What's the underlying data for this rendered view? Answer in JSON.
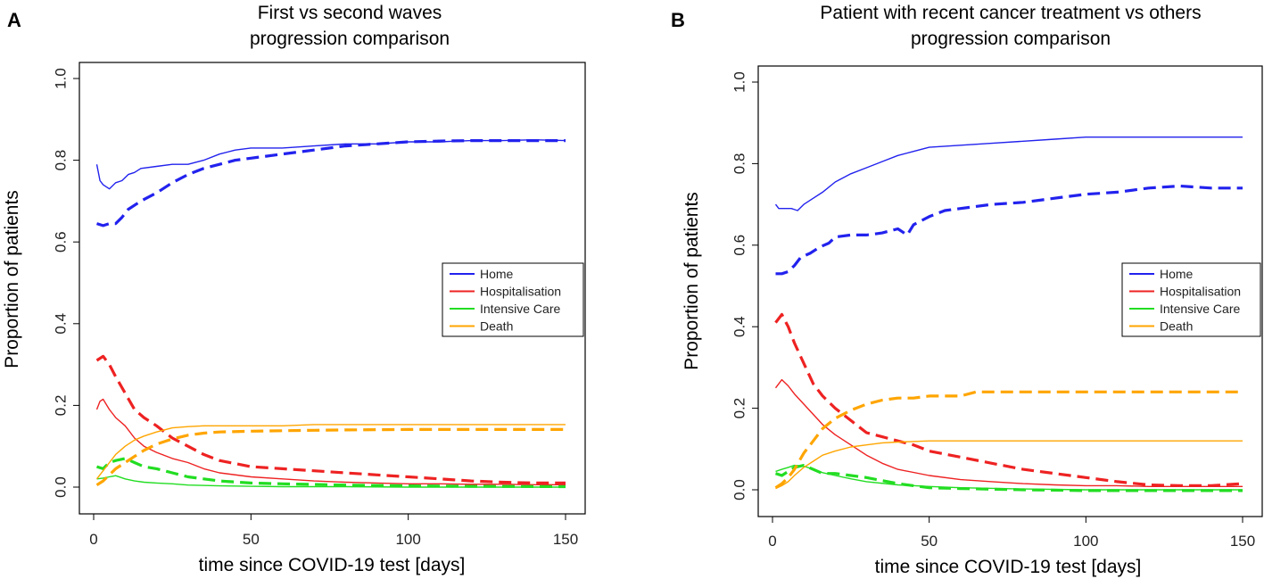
{
  "chart_data": [
    {
      "type": "line",
      "panel_label": "A",
      "title": [
        "First vs second waves",
        "progression comparison"
      ],
      "xlabel": "time since COVID-19 test [days]",
      "ylabel": "Proportion of patients",
      "xlim": [
        0,
        150
      ],
      "ylim": [
        0,
        1.0
      ],
      "xticks": [
        "0",
        "50",
        "100",
        "150"
      ],
      "yticks": [
        "0.0",
        "0.2",
        "0.4",
        "0.6",
        "0.8",
        "1.0"
      ],
      "legend": {
        "position": "center-right",
        "entries": [
          "Home",
          "Hospitalisation",
          "Intensive Care",
          "Death"
        ]
      },
      "series": [
        {
          "name": "Home",
          "style": "solid",
          "color": "#2222ee",
          "x": [
            1,
            2,
            3,
            5,
            7,
            9,
            11,
            13,
            15,
            20,
            25,
            30,
            35,
            40,
            45,
            50,
            60,
            70,
            80,
            90,
            100,
            110,
            120,
            130,
            140,
            150
          ],
          "y": [
            0.79,
            0.75,
            0.74,
            0.73,
            0.745,
            0.75,
            0.765,
            0.77,
            0.78,
            0.785,
            0.79,
            0.79,
            0.8,
            0.815,
            0.825,
            0.83,
            0.83,
            0.835,
            0.84,
            0.84,
            0.845,
            0.845,
            0.848,
            0.848,
            0.85,
            0.848
          ]
        },
        {
          "name": "Home",
          "style": "dashed",
          "color": "#2222ee",
          "x": [
            1,
            3,
            5,
            7,
            9,
            11,
            15,
            20,
            25,
            30,
            35,
            40,
            45,
            50,
            60,
            70,
            80,
            90,
            100,
            110,
            120,
            130,
            140,
            150
          ],
          "y": [
            0.645,
            0.64,
            0.645,
            0.645,
            0.66,
            0.68,
            0.7,
            0.72,
            0.745,
            0.765,
            0.78,
            0.79,
            0.8,
            0.805,
            0.815,
            0.825,
            0.835,
            0.84,
            0.845,
            0.847,
            0.848,
            0.848,
            0.848,
            0.848
          ]
        },
        {
          "name": "Hospitalisation",
          "style": "solid",
          "color": "#ee2222",
          "x": [
            1,
            2,
            3,
            5,
            7,
            10,
            13,
            16,
            20,
            25,
            30,
            35,
            40,
            50,
            60,
            70,
            80,
            90,
            100,
            110,
            120,
            130,
            140,
            150
          ],
          "y": [
            0.19,
            0.21,
            0.215,
            0.19,
            0.17,
            0.15,
            0.12,
            0.1,
            0.085,
            0.07,
            0.06,
            0.045,
            0.035,
            0.025,
            0.02,
            0.015,
            0.012,
            0.01,
            0.008,
            0.008,
            0.007,
            0.007,
            0.006,
            0.006
          ]
        },
        {
          "name": "Hospitalisation",
          "style": "dashed",
          "color": "#ee2222",
          "x": [
            1,
            3,
            5,
            7,
            10,
            13,
            16,
            20,
            25,
            30,
            35,
            40,
            50,
            60,
            70,
            80,
            90,
            100,
            110,
            120,
            130,
            140,
            150
          ],
          "y": [
            0.31,
            0.32,
            0.3,
            0.27,
            0.23,
            0.19,
            0.17,
            0.15,
            0.12,
            0.1,
            0.08,
            0.065,
            0.05,
            0.045,
            0.04,
            0.035,
            0.03,
            0.025,
            0.02,
            0.015,
            0.012,
            0.01,
            0.01
          ]
        },
        {
          "name": "Intensive Care",
          "style": "solid",
          "color": "#22dd22",
          "x": [
            1,
            3,
            5,
            7,
            10,
            13,
            16,
            20,
            25,
            30,
            40,
            50,
            60,
            80,
            100,
            120,
            150
          ],
          "y": [
            0.02,
            0.022,
            0.025,
            0.028,
            0.02,
            0.015,
            0.012,
            0.01,
            0.008,
            0.005,
            0.003,
            0.002,
            0.001,
            0.001,
            0.0,
            0.0,
            0.0
          ]
        },
        {
          "name": "Intensive Care",
          "style": "dashed",
          "color": "#22dd22",
          "x": [
            1,
            3,
            5,
            7,
            10,
            13,
            16,
            20,
            25,
            30,
            40,
            50,
            60,
            80,
            100,
            120,
            150
          ],
          "y": [
            0.05,
            0.045,
            0.06,
            0.065,
            0.07,
            0.06,
            0.05,
            0.045,
            0.035,
            0.025,
            0.015,
            0.01,
            0.008,
            0.005,
            0.003,
            0.002,
            0.001
          ]
        },
        {
          "name": "Death",
          "style": "solid",
          "color": "#ffa500",
          "x": [
            1,
            3,
            5,
            7,
            10,
            13,
            16,
            20,
            25,
            30,
            35,
            40,
            50,
            60,
            70,
            80,
            100,
            120,
            150
          ],
          "y": [
            0.02,
            0.04,
            0.06,
            0.08,
            0.1,
            0.115,
            0.125,
            0.135,
            0.145,
            0.148,
            0.15,
            0.15,
            0.15,
            0.15,
            0.153,
            0.153,
            0.153,
            0.153,
            0.153
          ]
        },
        {
          "name": "Death",
          "style": "dashed",
          "color": "#ffa500",
          "x": [
            1,
            3,
            5,
            7,
            10,
            13,
            16,
            20,
            25,
            30,
            35,
            40,
            50,
            60,
            70,
            80,
            100,
            120,
            150
          ],
          "y": [
            0.005,
            0.015,
            0.03,
            0.045,
            0.06,
            0.075,
            0.09,
            0.105,
            0.118,
            0.127,
            0.132,
            0.135,
            0.137,
            0.138,
            0.139,
            0.14,
            0.141,
            0.141,
            0.141
          ]
        }
      ]
    },
    {
      "type": "line",
      "panel_label": "B",
      "title": [
        "Patient with recent cancer treatment vs others",
        "progression comparison"
      ],
      "xlabel": "time since COVID-19 test [days]",
      "ylabel": "Proportion of patients",
      "xlim": [
        0,
        150
      ],
      "ylim": [
        0,
        1.0
      ],
      "xticks": [
        "0",
        "50",
        "100",
        "150"
      ],
      "yticks": [
        "0.0",
        "0.2",
        "0.4",
        "0.6",
        "0.8",
        "1.0"
      ],
      "legend": {
        "position": "center-right",
        "entries": [
          "Home",
          "Hospitalisation",
          "Intensive Care",
          "Death"
        ]
      },
      "series": [
        {
          "name": "Home",
          "style": "solid",
          "color": "#2222ee",
          "x": [
            1,
            2,
            4,
            6,
            8,
            10,
            13,
            16,
            20,
            25,
            30,
            35,
            40,
            45,
            50,
            60,
            70,
            80,
            90,
            100,
            110,
            120,
            130,
            140,
            150
          ],
          "y": [
            0.7,
            0.69,
            0.69,
            0.69,
            0.685,
            0.7,
            0.715,
            0.73,
            0.755,
            0.775,
            0.79,
            0.805,
            0.82,
            0.83,
            0.84,
            0.845,
            0.85,
            0.855,
            0.86,
            0.865,
            0.865,
            0.865,
            0.865,
            0.865,
            0.865
          ]
        },
        {
          "name": "Home",
          "style": "dashed",
          "color": "#2222ee",
          "x": [
            1,
            3,
            5,
            7,
            9,
            12,
            15,
            18,
            20,
            25,
            30,
            35,
            40,
            43,
            45,
            50,
            55,
            60,
            70,
            80,
            90,
            100,
            110,
            120,
            130,
            140,
            150
          ],
          "y": [
            0.53,
            0.53,
            0.535,
            0.55,
            0.57,
            0.58,
            0.595,
            0.605,
            0.62,
            0.625,
            0.625,
            0.63,
            0.64,
            0.625,
            0.65,
            0.67,
            0.685,
            0.69,
            0.7,
            0.705,
            0.715,
            0.725,
            0.73,
            0.74,
            0.745,
            0.74,
            0.74
          ]
        },
        {
          "name": "Hospitalisation",
          "style": "solid",
          "color": "#ee2222",
          "x": [
            1,
            3,
            5,
            7,
            10,
            13,
            16,
            20,
            25,
            30,
            35,
            40,
            50,
            60,
            70,
            80,
            90,
            100,
            110,
            120,
            130,
            140,
            150
          ],
          "y": [
            0.25,
            0.27,
            0.255,
            0.235,
            0.21,
            0.185,
            0.16,
            0.135,
            0.11,
            0.085,
            0.065,
            0.05,
            0.035,
            0.025,
            0.02,
            0.015,
            0.012,
            0.01,
            0.01,
            0.008,
            0.008,
            0.008,
            0.008
          ]
        },
        {
          "name": "Hospitalisation",
          "style": "dashed",
          "color": "#ee2222",
          "x": [
            1,
            3,
            5,
            7,
            10,
            13,
            16,
            20,
            25,
            30,
            35,
            40,
            45,
            50,
            60,
            70,
            80,
            90,
            100,
            110,
            120,
            130,
            140,
            150
          ],
          "y": [
            0.41,
            0.43,
            0.4,
            0.36,
            0.31,
            0.26,
            0.23,
            0.2,
            0.17,
            0.14,
            0.13,
            0.12,
            0.11,
            0.095,
            0.08,
            0.065,
            0.05,
            0.04,
            0.03,
            0.02,
            0.012,
            0.01,
            0.01,
            0.015
          ]
        },
        {
          "name": "Intensive Care",
          "style": "solid",
          "color": "#22dd22",
          "x": [
            1,
            3,
            5,
            7,
            10,
            13,
            16,
            20,
            25,
            30,
            40,
            50,
            60,
            80,
            100,
            120,
            150
          ],
          "y": [
            0.045,
            0.05,
            0.055,
            0.06,
            0.058,
            0.05,
            0.042,
            0.035,
            0.027,
            0.02,
            0.012,
            0.008,
            0.005,
            0.002,
            0.0,
            0.0,
            0.0
          ]
        },
        {
          "name": "Intensive Care",
          "style": "dashed",
          "color": "#22dd22",
          "x": [
            1,
            3,
            5,
            7,
            10,
            13,
            16,
            20,
            25,
            30,
            40,
            50,
            60,
            80,
            100,
            120,
            150
          ],
          "y": [
            0.04,
            0.035,
            0.045,
            0.055,
            0.06,
            0.05,
            0.04,
            0.04,
            0.035,
            0.03,
            0.015,
            0.005,
            0.003,
            0.0,
            -0.002,
            -0.002,
            -0.002
          ]
        },
        {
          "name": "Death",
          "style": "solid",
          "color": "#ffa500",
          "x": [
            1,
            3,
            5,
            7,
            10,
            13,
            16,
            20,
            25,
            30,
            35,
            40,
            50,
            60,
            70,
            80,
            100,
            120,
            150
          ],
          "y": [
            0.003,
            0.01,
            0.02,
            0.035,
            0.055,
            0.07,
            0.085,
            0.095,
            0.105,
            0.11,
            0.115,
            0.117,
            0.12,
            0.12,
            0.12,
            0.12,
            0.12,
            0.12,
            0.12
          ]
        },
        {
          "name": "Death",
          "style": "dashed",
          "color": "#ffa500",
          "x": [
            1,
            3,
            5,
            7,
            10,
            13,
            16,
            20,
            25,
            30,
            35,
            40,
            45,
            50,
            60,
            65,
            70,
            80,
            100,
            120,
            150
          ],
          "y": [
            0.005,
            0.015,
            0.03,
            0.05,
            0.09,
            0.12,
            0.15,
            0.175,
            0.195,
            0.21,
            0.22,
            0.225,
            0.225,
            0.23,
            0.23,
            0.24,
            0.24,
            0.24,
            0.24,
            0.24,
            0.24
          ]
        }
      ]
    }
  ]
}
